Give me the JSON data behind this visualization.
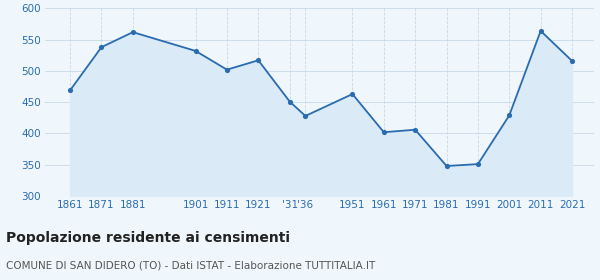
{
  "years": [
    1861,
    1871,
    1881,
    1901,
    1911,
    1921,
    1931,
    1936,
    1951,
    1961,
    1971,
    1981,
    1991,
    2001,
    2011,
    2021
  ],
  "population": [
    469,
    538,
    562,
    532,
    502,
    517,
    451,
    428,
    463,
    402,
    406,
    348,
    351,
    429,
    564,
    516
  ],
  "ylim": [
    300,
    600
  ],
  "yticks": [
    300,
    350,
    400,
    450,
    500,
    550,
    600
  ],
  "line_color": "#2b6cb0",
  "fill_color": "#daeaf7",
  "marker_color": "#2b6cb0",
  "grid_color": "#c8d8e8",
  "bg_color": "#f0f7fc",
  "title": "Popolazione residente ai censimenti",
  "subtitle": "COMUNE DI SAN DIDERO (TO) - Dati ISTAT - Elaborazione TUTTITALIA.IT",
  "title_fontsize": 10,
  "subtitle_fontsize": 7.5,
  "tick_label_color": "#2b6cb0",
  "tick_fontsize": 7.5,
  "xlim_left": 1853,
  "xlim_right": 2028
}
